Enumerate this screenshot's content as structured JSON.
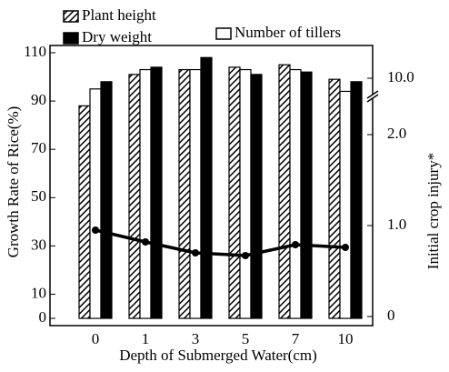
{
  "chart_data": {
    "type": "bar",
    "xlabel": "Depth of Submerged Water(cm)",
    "ylabel": "Growth Rate of Rice(%)",
    "y2label": "Initial crop injury*",
    "categories": [
      "0",
      "1",
      "3",
      "5",
      "7",
      "10"
    ],
    "series": [
      {
        "name": "Plant height",
        "color": "#000000",
        "hatch": true,
        "values": [
          88,
          101,
          103,
          104,
          105,
          99
        ]
      },
      {
        "name": "Number of tillers",
        "color": "#ffffff",
        "values": [
          95,
          103,
          103,
          103,
          103,
          94
        ]
      },
      {
        "name": "Dry weight",
        "color": "#000000",
        "values": [
          98,
          104,
          108,
          101,
          102,
          98
        ]
      },
      {
        "type": "line",
        "axis": "y2",
        "color": "#000000",
        "values": [
          0.95,
          0.82,
          0.7,
          0.67,
          0.79,
          0.76
        ]
      }
    ],
    "ylim": [
      -3,
      113
    ],
    "yticks": [
      0,
      10,
      30,
      50,
      70,
      90,
      110
    ],
    "y2lim": [
      -0.1,
      10.4
    ],
    "y2break": [
      2.4,
      9.8
    ],
    "y2ticks": [
      0,
      {
        "value": 1,
        "label": "1.0"
      },
      {
        "value": 2,
        "label": "2.0"
      },
      {
        "value": 10,
        "label": "10.0"
      }
    ]
  }
}
